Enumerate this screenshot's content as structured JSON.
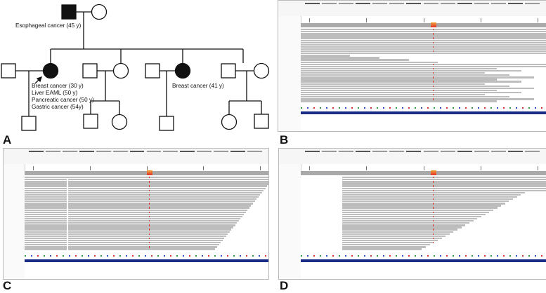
{
  "panels": {
    "a": "A",
    "b": "B",
    "c": "C",
    "d": "D"
  },
  "pedigree": {
    "proband_father_label": "Esophageal cancer (45 y)",
    "proband_labels": [
      "Breast cancer (30 y)",
      "Liver EAML (50 y)",
      "Pancreatic cancer (50 y)",
      "Gastric cancer (54y)"
    ],
    "sister_label": "Breast cancer (41 y)"
  },
  "igv_colors": {
    "read": "#bdbdbd",
    "coverage": "#a9a9a9",
    "variant_red": "#e0302a",
    "variant_orange": "#f3a23a",
    "gene": "#1b2c86"
  }
}
